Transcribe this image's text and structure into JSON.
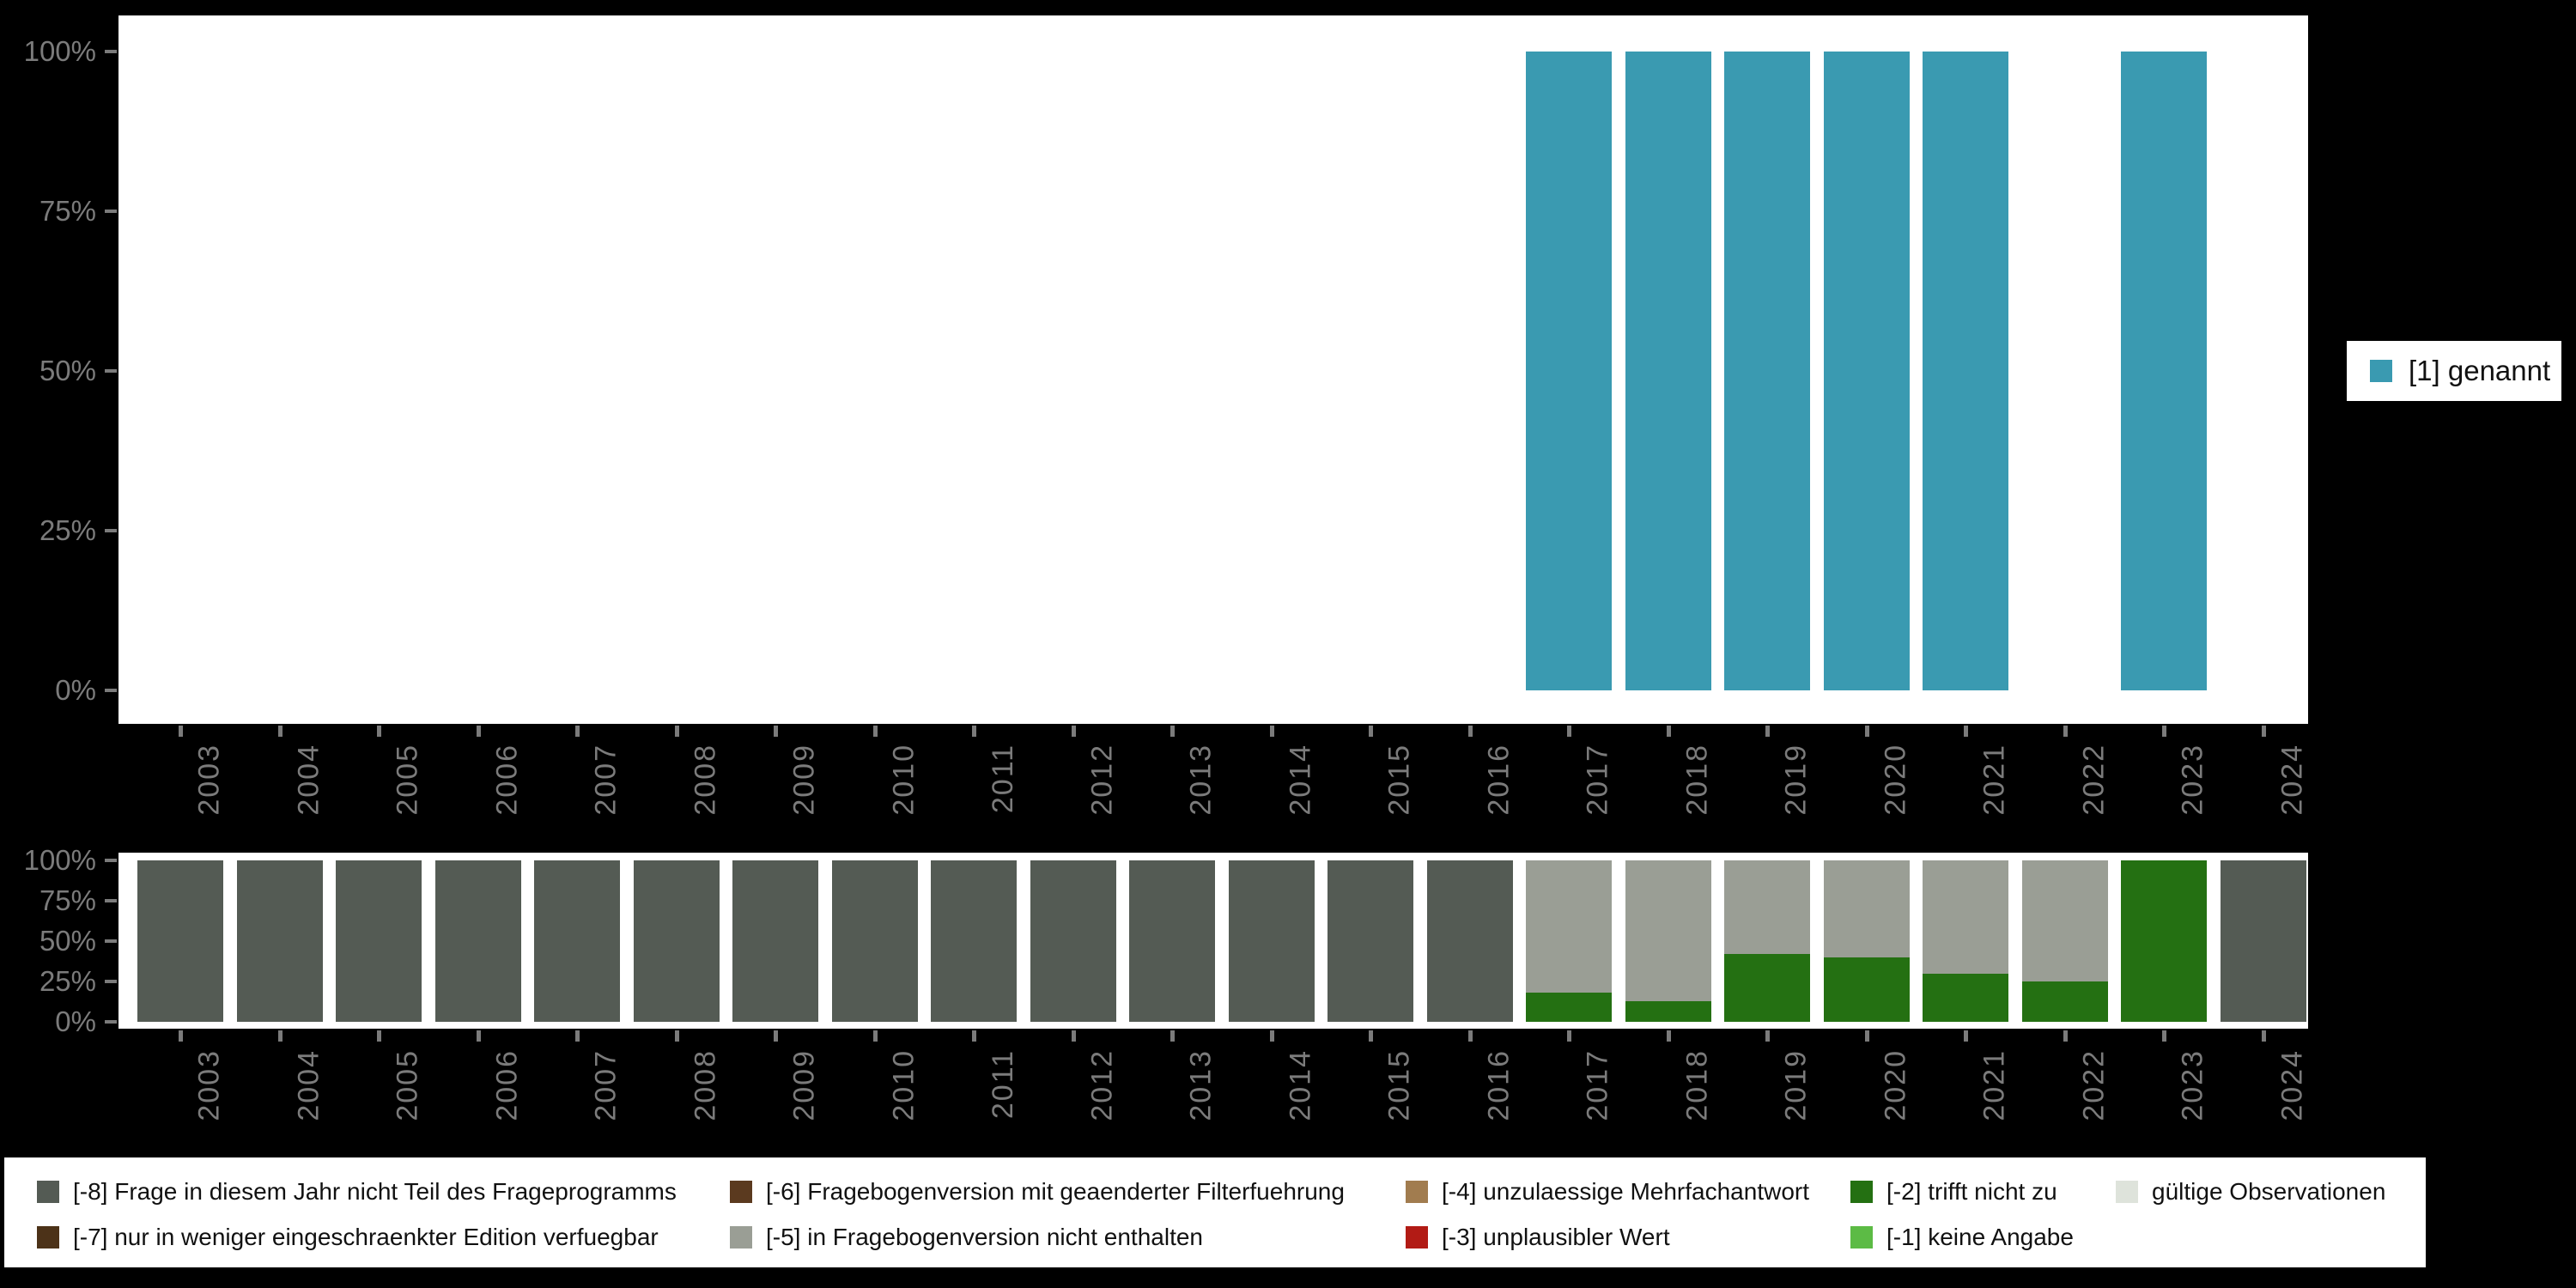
{
  "app": {
    "background": "#000000",
    "plot_background": "#ffffff",
    "axis_text_color": "#7b7b7b",
    "legend_text_color": "#111111"
  },
  "legend_right": {
    "items": [
      {
        "label": "[1] genannt",
        "color": "#3A9AB1"
      }
    ]
  },
  "legend_bottom": {
    "columns": [
      [
        {
          "label": "[-8] Frage in diesem Jahr nicht Teil des Frageprogramms",
          "color": "#545B54"
        },
        {
          "label": "[-7] nur in weniger eingeschraenkter Edition verfuegbar",
          "color": "#4C3218"
        }
      ],
      [
        {
          "label": "[-6] Fragebogenversion mit geaenderter Filterfuehrung",
          "color": "#5B3A1F"
        },
        {
          "label": "[-5] in Fragebogenversion nicht enthalten",
          "color": "#9A9E95"
        }
      ],
      [
        {
          "label": "[-4] unzulaessige Mehrfachantwort",
          "color": "#A17C4F"
        },
        {
          "label": "[-3] unplausibler Wert",
          "color": "#B21B15"
        }
      ],
      [
        {
          "label": "[-2] trifft nicht zu",
          "color": "#247012"
        },
        {
          "label": "[-1] keine Angabe",
          "color": "#5CBB45"
        }
      ],
      [
        {
          "label": "gültige Observationen",
          "color": "#DEE3DB"
        }
      ]
    ]
  },
  "chart_data": [
    {
      "type": "bar",
      "id": "main",
      "title": "",
      "xlabel": "",
      "ylabel": "",
      "ylim": [
        0,
        100
      ],
      "grid": false,
      "legend_position": "right",
      "yticks": [
        "0%",
        "25%",
        "50%",
        "75%",
        "100%"
      ],
      "categories": [
        "2003",
        "2004",
        "2005",
        "2006",
        "2007",
        "2008",
        "2009",
        "2010",
        "2011",
        "2012",
        "2013",
        "2014",
        "2015",
        "2016",
        "2017",
        "2018",
        "2019",
        "2020",
        "2021",
        "2022",
        "2023",
        "2024"
      ],
      "series": [
        {
          "name": "[1] genannt",
          "color": "#3A9AB1",
          "values": [
            null,
            null,
            null,
            null,
            null,
            null,
            null,
            null,
            null,
            null,
            null,
            null,
            null,
            null,
            100,
            100,
            100,
            100,
            100,
            null,
            100,
            null
          ]
        }
      ]
    },
    {
      "type": "bar",
      "id": "missings",
      "stacked": true,
      "title": "",
      "xlabel": "",
      "ylabel": "",
      "ylim": [
        0,
        100
      ],
      "grid": false,
      "legend_position": "bottom",
      "yticks": [
        "0%",
        "25%",
        "50%",
        "75%",
        "100%"
      ],
      "categories": [
        "2003",
        "2004",
        "2005",
        "2006",
        "2007",
        "2008",
        "2009",
        "2010",
        "2011",
        "2012",
        "2013",
        "2014",
        "2015",
        "2016",
        "2017",
        "2018",
        "2019",
        "2020",
        "2021",
        "2022",
        "2023",
        "2024"
      ],
      "series": [
        {
          "name": "[-2] trifft nicht zu",
          "color": "#247012",
          "values": [
            0,
            0,
            0,
            0,
            0,
            0,
            0,
            0,
            0,
            0,
            0,
            0,
            0,
            0,
            18,
            13,
            42,
            40,
            30,
            25,
            100,
            0
          ]
        },
        {
          "name": "[-5] in Fragebogenversion nicht enthalten",
          "color": "#9A9E95",
          "values": [
            0,
            0,
            0,
            0,
            0,
            0,
            0,
            0,
            0,
            0,
            0,
            0,
            0,
            0,
            82,
            87,
            58,
            60,
            70,
            75,
            0,
            0
          ]
        },
        {
          "name": "[-8] Frage in diesem Jahr nicht Teil des Frageprogramms",
          "color": "#545B54",
          "values": [
            100,
            100,
            100,
            100,
            100,
            100,
            100,
            100,
            100,
            100,
            100,
            100,
            100,
            100,
            0,
            0,
            0,
            0,
            0,
            0,
            0,
            100
          ]
        }
      ]
    }
  ]
}
